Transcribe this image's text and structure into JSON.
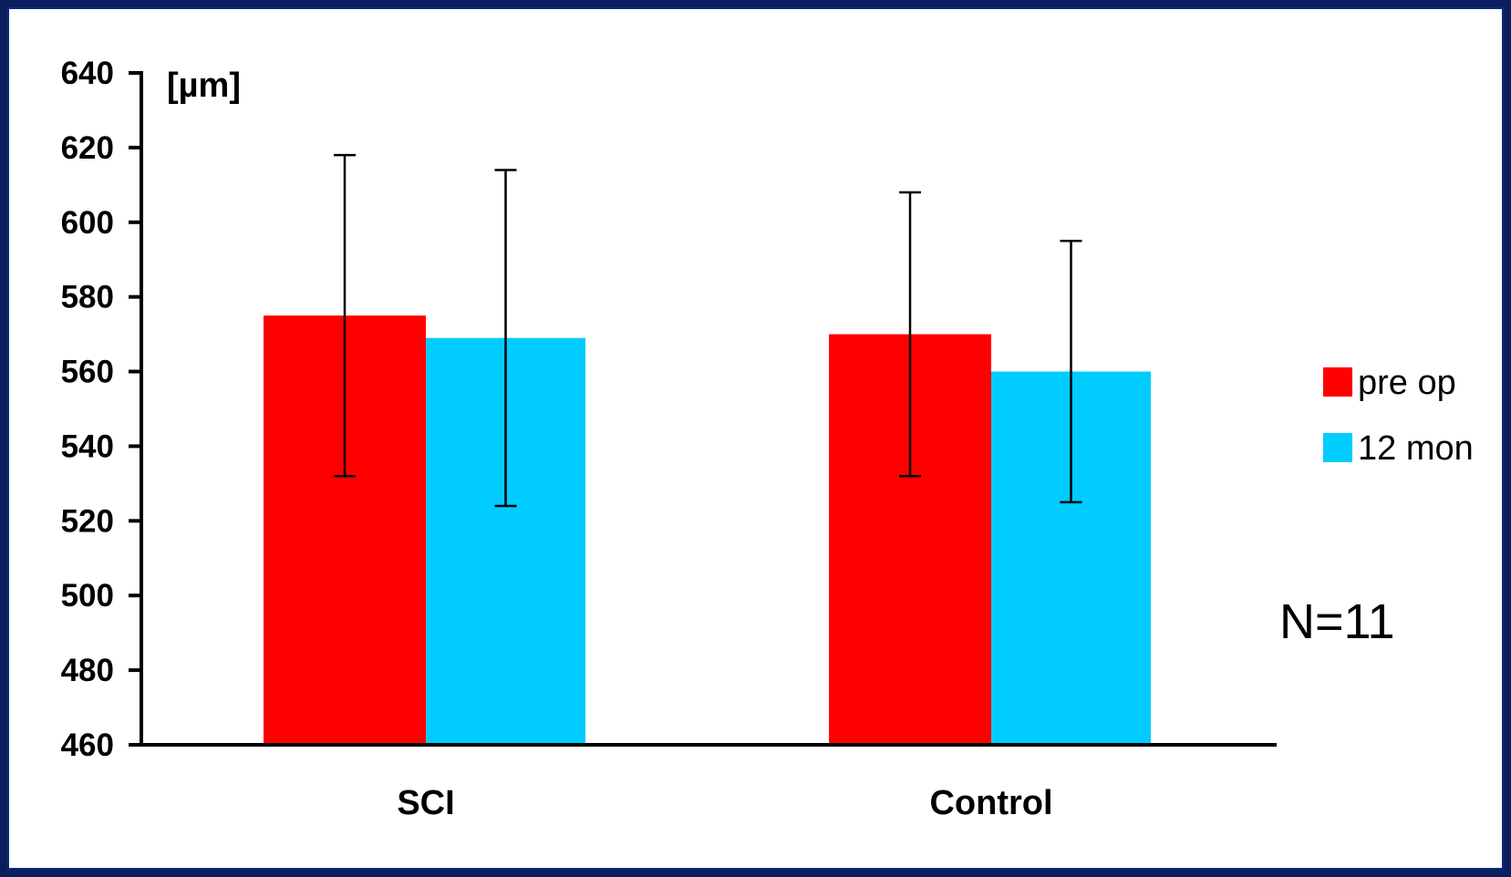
{
  "chart_data": {
    "type": "bar",
    "categories": [
      "SCI",
      "Control"
    ],
    "series": [
      {
        "name": "pre op",
        "color": "#ff0000",
        "values": [
          575,
          570
        ],
        "error_low": [
          532,
          532
        ],
        "error_high": [
          618,
          608
        ]
      },
      {
        "name": "12 mon",
        "color": "#00ccff",
        "values": [
          569,
          560
        ],
        "error_low": [
          524,
          525
        ],
        "error_high": [
          614,
          595
        ]
      }
    ],
    "title": "",
    "xlabel": "",
    "ylabel": "[µm]",
    "ylim": [
      460,
      640
    ],
    "yticks": [
      640,
      620,
      600,
      580,
      560,
      540,
      520,
      500,
      480,
      460
    ],
    "grid": false,
    "legend_position": "right",
    "annotation": "N=11"
  },
  "colors": {
    "frame": "#0a1e5e",
    "background": "#ffffff",
    "axis": "#000000"
  }
}
